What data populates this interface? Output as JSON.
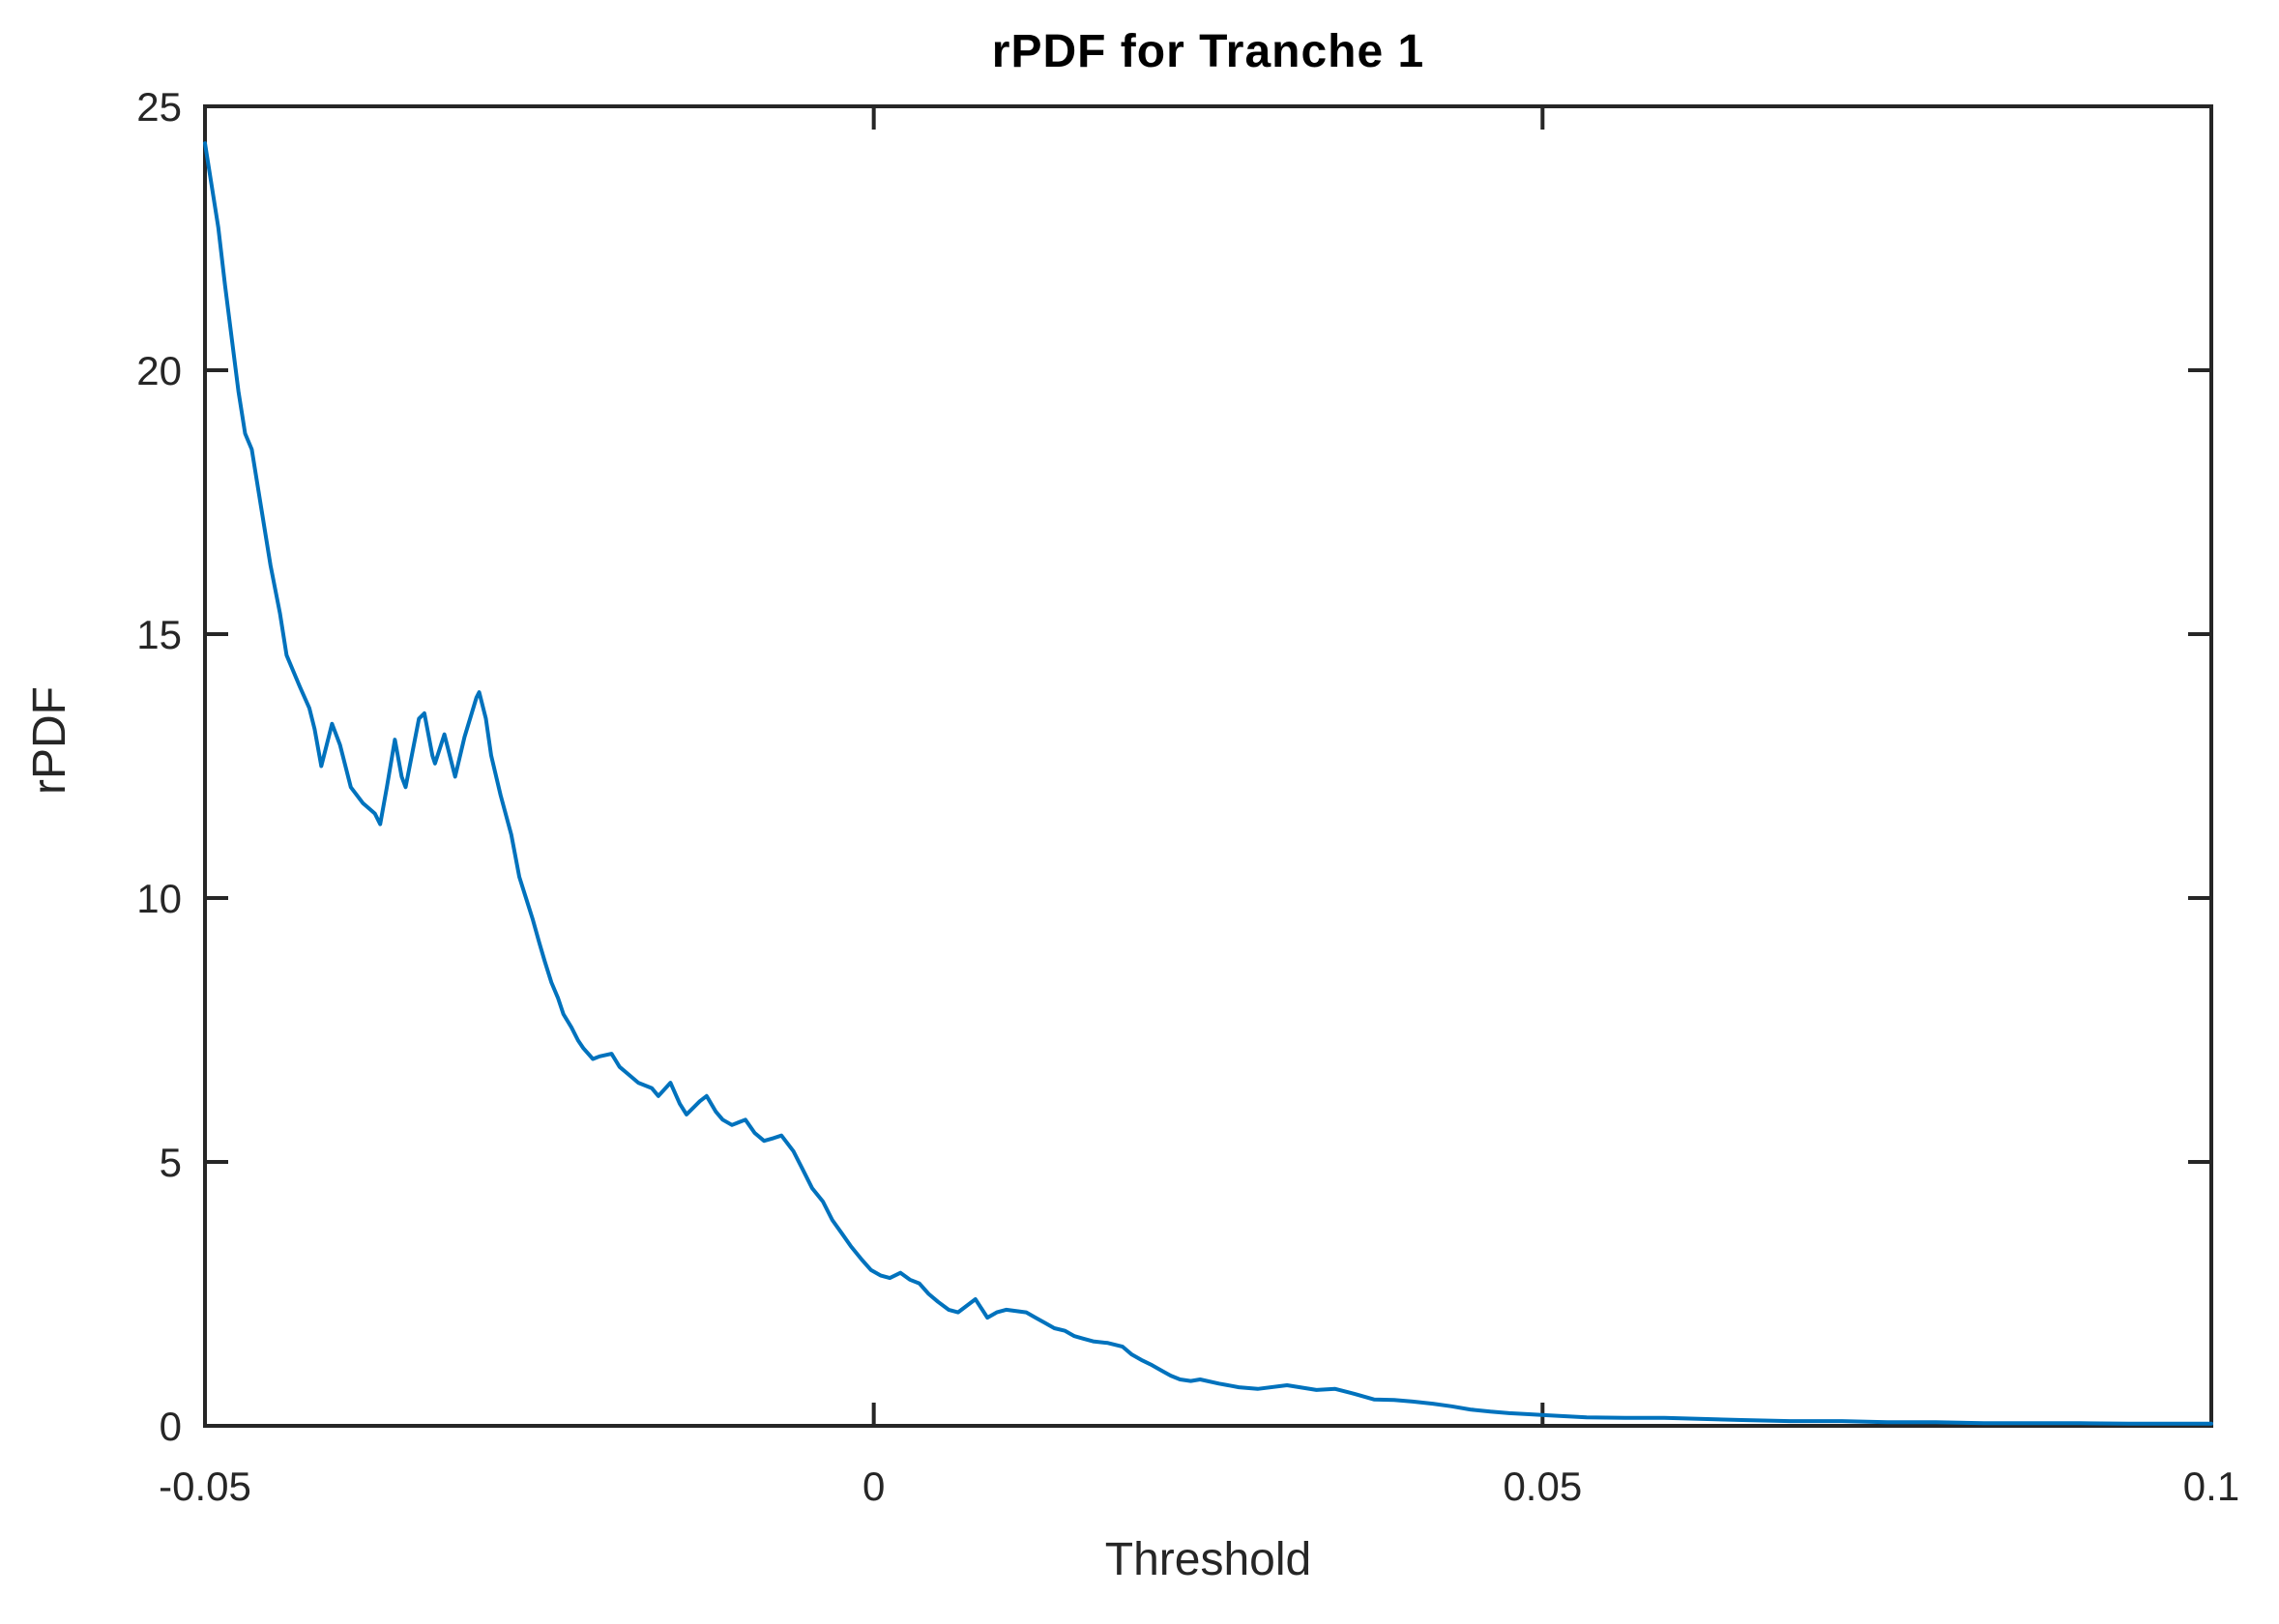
{
  "chart_data": {
    "type": "line",
    "title": "rPDF for Tranche 1",
    "xlabel": "Threshold",
    "ylabel": "rPDF",
    "xlim": [
      -0.05,
      0.1
    ],
    "ylim": [
      0,
      25
    ],
    "grid": false,
    "legend_position": "none",
    "xticks": {
      "values": [
        -0.05,
        0,
        0.05,
        0.1
      ],
      "labels": [
        "-0.05",
        "0",
        "0.05",
        "0.1"
      ]
    },
    "yticks": {
      "values": [
        0,
        5,
        10,
        15,
        20,
        25
      ],
      "labels": [
        "0",
        "5",
        "10",
        "15",
        "20",
        "25"
      ]
    },
    "colors": {
      "line": "#0072BD",
      "axis": "#262626",
      "title": "#000000",
      "background": "#ffffff"
    },
    "series": [
      {
        "name": "rPDF",
        "color": "#0072BD",
        "x": [
          -0.05,
          -0.0495,
          -0.049,
          -0.0485,
          -0.048,
          -0.0475,
          -0.047,
          -0.0465,
          -0.0458,
          -0.0451,
          -0.0444,
          -0.0439,
          -0.0429,
          -0.0422,
          -0.0418,
          -0.0413,
          -0.0405,
          -0.0399,
          -0.0391,
          -0.0382,
          -0.0373,
          -0.0369,
          -0.0364,
          -0.0358,
          -0.0353,
          -0.035,
          -0.034,
          -0.0336,
          -0.033,
          -0.0328,
          -0.0321,
          -0.0313,
          -0.0306,
          -0.0297,
          -0.0295,
          -0.029,
          -0.0286,
          -0.0279,
          -0.0271,
          -0.0265,
          -0.026,
          -0.0255,
          -0.025,
          -0.0246,
          -0.0241,
          -0.0236,
          -0.0232,
          -0.0226,
          -0.0221,
          -0.0217,
          -0.021,
          -0.0205,
          -0.0196,
          -0.019,
          -0.0183,
          -0.0176,
          -0.0166,
          -0.0161,
          -0.0152,
          -0.0145,
          -0.014,
          -0.013,
          -0.0125,
          -0.0118,
          -0.0113,
          -0.0106,
          -0.0096,
          -0.0089,
          -0.0082,
          -0.0075,
          -0.0069,
          -0.006,
          -0.0053,
          -0.0046,
          -0.0038,
          -0.0031,
          -0.0024,
          -0.0017,
          -0.0009,
          -0.0002,
          0.0005,
          0.0012,
          0.002,
          0.0027,
          0.0034,
          0.0041,
          0.0048,
          0.0056,
          0.0063,
          0.0076,
          0.0085,
          0.0092,
          0.0099,
          0.0114,
          0.0121,
          0.0128,
          0.0135,
          0.0143,
          0.015,
          0.0157,
          0.0164,
          0.0175,
          0.0186,
          0.0193,
          0.02,
          0.0208,
          0.0215,
          0.0222,
          0.0229,
          0.0237,
          0.0244,
          0.0258,
          0.0273,
          0.0287,
          0.0309,
          0.0331,
          0.0345,
          0.036,
          0.0374,
          0.0389,
          0.0403,
          0.0418,
          0.0432,
          0.0446,
          0.0461,
          0.0475,
          0.049,
          0.0504,
          0.0533,
          0.0562,
          0.0591,
          0.062,
          0.0649,
          0.0685,
          0.0722,
          0.0758,
          0.0794,
          0.083,
          0.0866,
          0.0902,
          0.0938,
          0.0975,
          0.1
        ],
        "y": [
          24.3,
          23.5,
          22.7,
          21.6,
          20.6,
          19.6,
          18.8,
          18.5,
          17.4,
          16.3,
          15.4,
          14.6,
          14.0,
          13.6,
          13.2,
          12.5,
          13.3,
          12.9,
          12.1,
          11.8,
          11.6,
          11.4,
          12.1,
          13.0,
          12.3,
          12.1,
          13.4,
          13.5,
          12.7,
          12.55,
          13.1,
          12.3,
          13.05,
          13.8,
          13.9,
          13.4,
          12.7,
          11.95,
          11.2,
          10.4,
          10.0,
          9.6,
          9.15,
          8.8,
          8.4,
          8.1,
          7.8,
          7.55,
          7.3,
          7.15,
          6.95,
          7.0,
          7.05,
          6.8,
          6.65,
          6.5,
          6.4,
          6.25,
          6.5,
          6.1,
          5.9,
          6.15,
          6.25,
          5.95,
          5.8,
          5.7,
          5.8,
          5.55,
          5.4,
          5.45,
          5.5,
          5.2,
          4.85,
          4.5,
          4.25,
          3.9,
          3.65,
          3.4,
          3.15,
          2.95,
          2.85,
          2.8,
          2.9,
          2.77,
          2.7,
          2.5,
          2.35,
          2.2,
          2.15,
          2.4,
          2.05,
          2.15,
          2.2,
          2.15,
          2.05,
          1.95,
          1.85,
          1.8,
          1.7,
          1.65,
          1.6,
          1.57,
          1.5,
          1.35,
          1.25,
          1.15,
          1.05,
          0.95,
          0.88,
          0.85,
          0.88,
          0.8,
          0.73,
          0.7,
          0.77,
          0.68,
          0.7,
          0.6,
          0.5,
          0.49,
          0.46,
          0.42,
          0.37,
          0.31,
          0.27,
          0.24,
          0.22,
          0.2,
          0.16,
          0.15,
          0.15,
          0.13,
          0.11,
          0.09,
          0.09,
          0.07,
          0.07,
          0.05,
          0.05,
          0.05,
          0.04,
          0.04,
          0.04
        ]
      }
    ]
  }
}
